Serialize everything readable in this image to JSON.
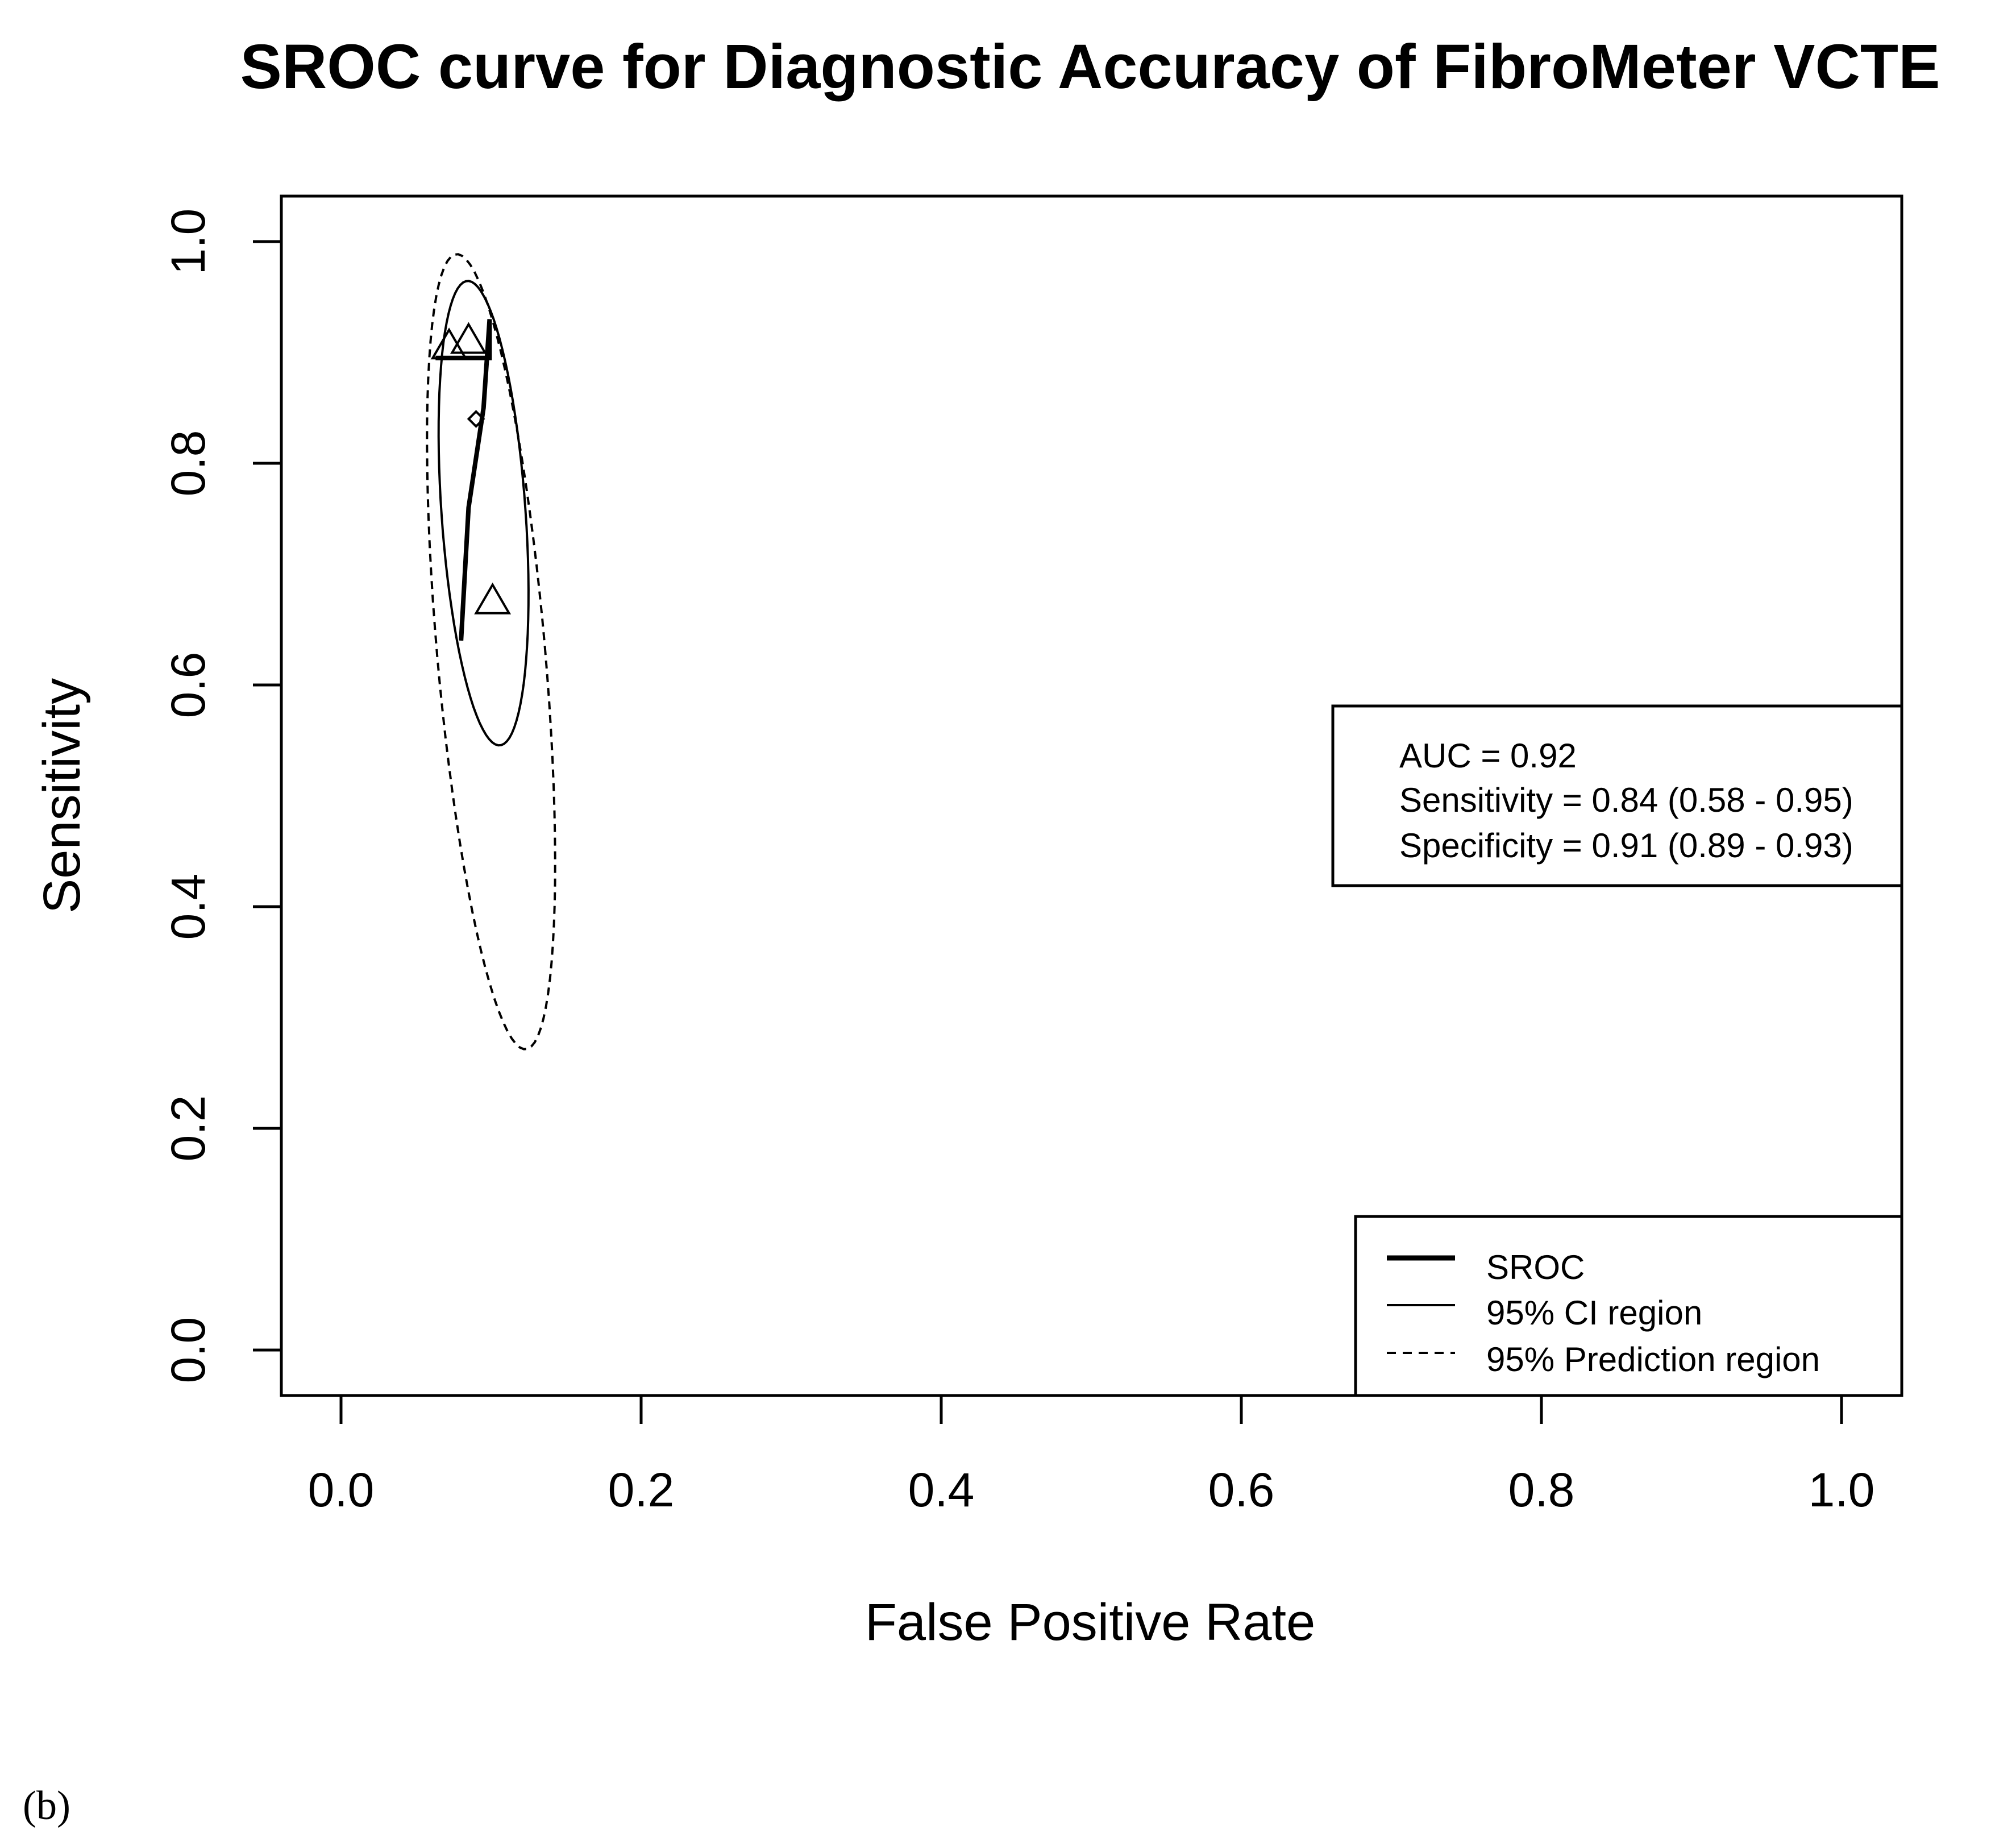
{
  "chart_data": {
    "type": "scatter",
    "title": "SROC curve for Diagnostic Accuracy of FibroMeter VCTE",
    "xlabel": "False Positive Rate",
    "ylabel": "Sensitivity",
    "xlim": [
      0.0,
      1.0
    ],
    "ylim": [
      0.0,
      1.0
    ],
    "x_ticks": [
      "0.0",
      "0.2",
      "0.4",
      "0.6",
      "0.8",
      "1.0"
    ],
    "y_ticks": [
      "0.0",
      "0.2",
      "0.4",
      "0.6",
      "0.8",
      "1.0"
    ],
    "studies": [
      {
        "fpr": 0.072,
        "sens": 0.905
      },
      {
        "fpr": 0.085,
        "sens": 0.91
      },
      {
        "fpr": 0.101,
        "sens": 0.675
      }
    ],
    "summary_point": {
      "fpr": 0.09,
      "sens": 0.84
    },
    "sroc_curve": [
      [
        0.063,
        0.895
      ],
      [
        0.099,
        0.895
      ],
      [
        0.099,
        0.93
      ],
      [
        0.095,
        0.85
      ],
      [
        0.085,
        0.76
      ],
      [
        0.08,
        0.64
      ]
    ],
    "ci_region": {
      "center_fpr": 0.095,
      "center_sens": 0.755,
      "fpr_half_width": 0.028,
      "sens_half_height": 0.21,
      "tilt_deg": -4
    },
    "prediction_region": {
      "center_fpr": 0.1,
      "center_sens": 0.63,
      "fpr_half_width": 0.036,
      "sens_half_height": 0.36,
      "tilt_deg": -5
    },
    "stats": {
      "auc": "AUC = 0.92",
      "sensitivity": "Sensitivity = 0.84 (0.58 - 0.95)",
      "specificity": "Specificity = 0.91 (0.89 - 0.93)"
    },
    "legend": {
      "position": "bottom-right",
      "entries": [
        {
          "label": "SROC",
          "style": "thick-solid"
        },
        {
          "label": "95% CI region",
          "style": "solid"
        },
        {
          "label": "95% Prediction region",
          "style": "dashed"
        }
      ]
    },
    "panel_label": "(b)"
  }
}
